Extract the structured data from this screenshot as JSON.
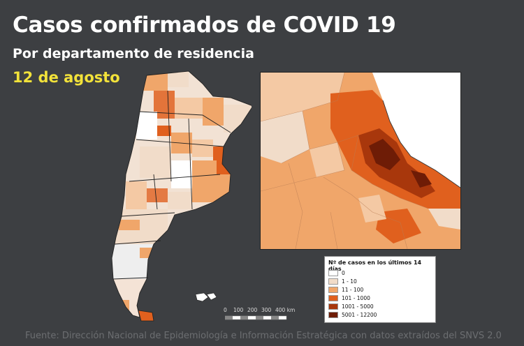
{
  "header": {
    "title": "Casos confirmados de COVID 19",
    "subtitle": "Por departamento de residencia",
    "date": "12 de agosto"
  },
  "legend": {
    "title": "Nº de casos en los últimos 14 días",
    "items": [
      {
        "label": "0",
        "color": "#ffffff"
      },
      {
        "label": "1 - 10",
        "color": "#f1dcc9"
      },
      {
        "label": "11 - 100",
        "color": "#f0a66a"
      },
      {
        "label": "101 - 1000",
        "color": "#e0601e"
      },
      {
        "label": "1001 - 5000",
        "color": "#a8370c"
      },
      {
        "label": "5001 - 12200",
        "color": "#6e1c06"
      }
    ]
  },
  "scale": {
    "labels": [
      "0",
      "100",
      "200",
      "300",
      "400 km"
    ]
  },
  "source": "Fuente: Dirección Nacional de Epidemiología e Información Estratégica con datos extraídos del SNVS 2.0"
}
